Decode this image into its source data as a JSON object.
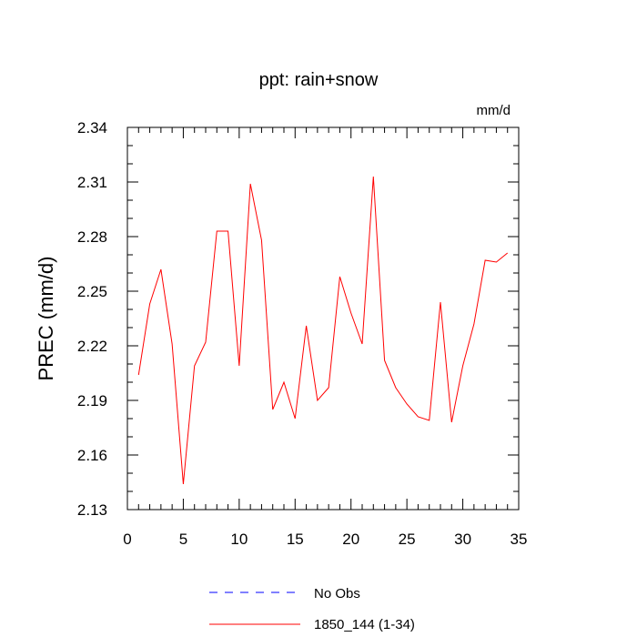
{
  "chart_data": {
    "type": "line",
    "title": "ppt: rain+snow",
    "units_label": "mm/d",
    "ylabel": "PREC  (mm/d)",
    "xlabel": "",
    "xlim": [
      0,
      35
    ],
    "ylim": [
      2.13,
      2.34
    ],
    "x_ticks": [
      0,
      5,
      10,
      15,
      20,
      25,
      30,
      35
    ],
    "y_ticks": [
      2.13,
      2.16,
      2.19,
      2.22,
      2.25,
      2.28,
      2.31,
      2.34
    ],
    "y_tick_labels": [
      "2.13",
      "2.16",
      "2.19",
      "2.22",
      "2.25",
      "2.28",
      "2.31",
      "2.34"
    ],
    "grid": false,
    "legend_position": "bottom",
    "series": [
      {
        "name": "No Obs",
        "color": "#0000ff",
        "dashed": true,
        "x": [],
        "values": []
      },
      {
        "name": "1850_144 (1-34)",
        "color": "#ff0000",
        "dashed": false,
        "x": [
          1,
          2,
          3,
          4,
          5,
          6,
          7,
          8,
          9,
          10,
          11,
          12,
          13,
          14,
          15,
          16,
          17,
          18,
          19,
          20,
          21,
          22,
          23,
          24,
          25,
          26,
          27,
          28,
          29,
          30,
          31,
          32,
          33,
          34
        ],
        "values": [
          2.204,
          2.243,
          2.262,
          2.221,
          2.144,
          2.209,
          2.222,
          2.283,
          2.283,
          2.209,
          2.309,
          2.278,
          2.185,
          2.2,
          2.18,
          2.231,
          2.19,
          2.197,
          2.258,
          2.238,
          2.221,
          2.313,
          2.212,
          2.197,
          2.188,
          2.181,
          2.179,
          2.244,
          2.178,
          2.209,
          2.232,
          2.267,
          2.266,
          2.271
        ]
      }
    ]
  }
}
